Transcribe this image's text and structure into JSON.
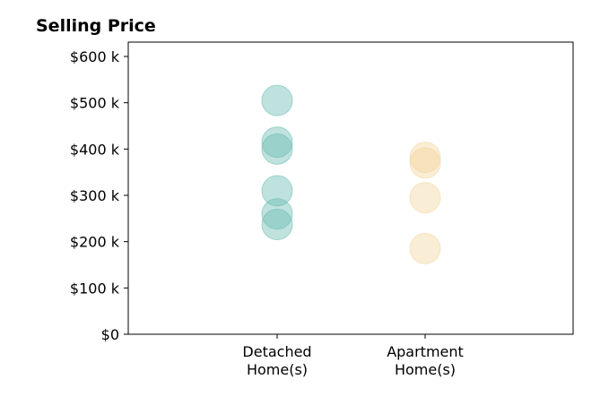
{
  "chart_data": {
    "type": "scatter",
    "title": "Selling Price",
    "xlabel": "",
    "ylabel": "",
    "categories": [
      "Detached Home(s)",
      "Apartment Home(s)"
    ],
    "category_label_lines": [
      [
        "Detached",
        "Home(s)"
      ],
      [
        "Apartment",
        "Home(s)"
      ]
    ],
    "ylim": [
      0,
      600000
    ],
    "yticks": [
      0,
      100000,
      200000,
      300000,
      400000,
      500000,
      600000
    ],
    "ytick_labels": [
      "$0",
      "$100 k",
      "$200 k",
      "$300 k",
      "$400 k",
      "$500 k",
      "$600 k"
    ],
    "series": [
      {
        "category": "Detached Home(s)",
        "color": "#66bbb0",
        "values": [
          505000,
          415000,
          400000,
          310000,
          260000,
          237000
        ]
      },
      {
        "category": "Apartment Home(s)",
        "color": "#f2d59a",
        "values": [
          382000,
          370000,
          295000,
          185000
        ]
      }
    ],
    "grid": false,
    "legend": "none"
  }
}
